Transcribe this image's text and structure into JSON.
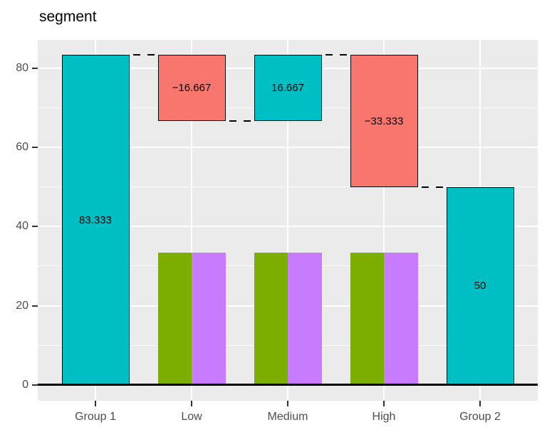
{
  "colors": {
    "panel_bg": "#EBEBEB",
    "grid_major": "#FFFFFF",
    "grid_minor": "rgba(255,255,255,0.75)",
    "axis_text": "#4D4D4D",
    "tick": "#333333",
    "bar_border": "#000000",
    "connector": "#000000",
    "zero_line": "#000000",
    "title_text": "#000000",
    "background": "#FFFFFF"
  },
  "chart_data": {
    "type": "bar",
    "subtype": "waterfall-with-grouped-bars",
    "title": "segment",
    "xlabel": "",
    "ylabel": "",
    "categories": [
      "Group 1",
      "Low",
      "Medium",
      "High",
      "Group 2"
    ],
    "y_ticks": [
      0,
      20,
      40,
      60,
      80
    ],
    "y_minor_ticks": [
      10,
      30,
      50,
      70
    ],
    "ylim": [
      -4,
      87.2
    ],
    "grid": true,
    "legend": false,
    "waterfall_segments": [
      {
        "category": "Group 1",
        "label": "83.333",
        "value": 83.333,
        "start": 0,
        "end": 83.333,
        "color": "#00BFC4"
      },
      {
        "category": "Low",
        "label": "−16.667",
        "value": -16.667,
        "start": 83.333,
        "end": 66.667,
        "color": "#F8766D"
      },
      {
        "category": "Medium",
        "label": "16.667",
        "value": 16.667,
        "start": 66.667,
        "end": 83.333,
        "color": "#00BFC4"
      },
      {
        "category": "High",
        "label": "−33.333",
        "value": -33.333,
        "start": 83.333,
        "end": 50,
        "color": "#F8766D"
      },
      {
        "category": "Group 2",
        "label": "50",
        "value": 50,
        "start": 0,
        "end": 50,
        "color": "#00BFC4"
      }
    ],
    "grouped_bars": {
      "categories": [
        "Low",
        "Medium",
        "High"
      ],
      "series": [
        {
          "name": "green",
          "color": "#7CAE00",
          "values": [
            33.333,
            33.333,
            33.333
          ]
        },
        {
          "name": "purple",
          "color": "#C77CFF",
          "values": [
            33.333,
            33.333,
            33.333
          ]
        }
      ]
    },
    "connectors": [
      {
        "from": "Group 1",
        "to": "Low",
        "level": 83.333
      },
      {
        "from": "Low",
        "to": "Medium",
        "level": 66.667
      },
      {
        "from": "Medium",
        "to": "High",
        "level": 83.333
      },
      {
        "from": "High",
        "to": "Group 2",
        "level": 50
      }
    ],
    "zero_line": 0
  }
}
